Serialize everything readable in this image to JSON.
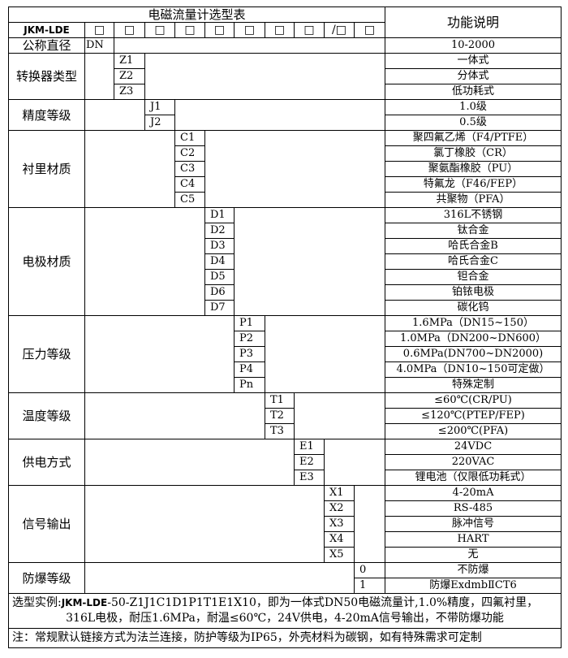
{
  "header": {
    "title": "电磁流量计选型表",
    "function_header": "功能说明",
    "model_prefix": "JKM-LDE",
    "code_boxes": [
      "□",
      "□",
      "□",
      "□",
      "□",
      "□",
      "□",
      "□",
      "/□",
      "□"
    ]
  },
  "nominal_diameter": {
    "label": "公称直径",
    "code": "DN",
    "description": "10-2000"
  },
  "sections": [
    {
      "label": "转换器类型",
      "column": 2,
      "rows": [
        {
          "code": "Z1",
          "description": "一体式"
        },
        {
          "code": "Z2",
          "description": "分体式"
        },
        {
          "code": "Z3",
          "description": "低功耗式"
        }
      ]
    },
    {
      "label": "精度等级",
      "column": 3,
      "rows": [
        {
          "code": "J1",
          "description": "1.0级"
        },
        {
          "code": "J2",
          "description": "0.5级"
        }
      ]
    },
    {
      "label": "衬里材质",
      "column": 4,
      "rows": [
        {
          "code": "C1",
          "description": "聚四氟乙烯（F4/PTFE）"
        },
        {
          "code": "C2",
          "description": "氯丁橡胶（CR）"
        },
        {
          "code": "C3",
          "description": "聚氨酯橡胶（PU）"
        },
        {
          "code": "C4",
          "description": "特氟龙（F46/FEP）"
        },
        {
          "code": "C5",
          "description": "共聚物（PFA）"
        }
      ]
    },
    {
      "label": "电极材质",
      "column": 5,
      "rows": [
        {
          "code": "D1",
          "description": "316L不锈钢"
        },
        {
          "code": "D2",
          "description": "钛合金"
        },
        {
          "code": "D3",
          "description": "哈氏合金B"
        },
        {
          "code": "D4",
          "description": "哈氏合金C"
        },
        {
          "code": "D5",
          "description": "钽合金"
        },
        {
          "code": "D6",
          "description": "铂铱电极"
        },
        {
          "code": "D7",
          "description": "碳化钨"
        }
      ]
    },
    {
      "label": "压力等级",
      "column": 6,
      "rows": [
        {
          "code": "P1",
          "description": "1.6MPa（DN15~150）"
        },
        {
          "code": "P2",
          "description": "1.0MPa（DN200~DN600）"
        },
        {
          "code": "P3",
          "description": "0.6MPa(DN700~DN2000)"
        },
        {
          "code": "P4",
          "description": "4.0MPa（DN10~150可定做）"
        },
        {
          "code": "Pn",
          "description": "特殊定制"
        }
      ]
    },
    {
      "label": "温度等级",
      "column": 7,
      "rows": [
        {
          "code": "T1",
          "description": "≤60℃(CR/PU)"
        },
        {
          "code": "T2",
          "description": "≤120℃(PTEP/FEP)"
        },
        {
          "code": "T3",
          "description": "≤200℃(PFA)"
        }
      ]
    },
    {
      "label": "供电方式",
      "column": 8,
      "rows": [
        {
          "code": "E1",
          "description": "24VDC"
        },
        {
          "code": "E2",
          "description": "220VAC"
        },
        {
          "code": "E3",
          "description": "锂电池（仅限低功耗式）"
        }
      ]
    },
    {
      "label": "信号输出",
      "column": 9,
      "rows": [
        {
          "code": "X1",
          "description": "4-20mA"
        },
        {
          "code": "X2",
          "description": "RS-485"
        },
        {
          "code": "X3",
          "description": "脉冲信号"
        },
        {
          "code": "X4",
          "description": "HART"
        },
        {
          "code": "X5",
          "description": "无"
        }
      ]
    },
    {
      "label": "防爆等级",
      "column": 10,
      "rows": [
        {
          "code": "0",
          "description": "不防爆"
        },
        {
          "code": "1",
          "description": "防爆ExdmbⅡCT6"
        }
      ]
    }
  ],
  "footer": {
    "example_label": "选型实例:",
    "example_model": "JKM-LDE",
    "example_line1": "-50-Z1J1C1D1P1T1E1X10，即为一体式DN50电磁流量计,1.0%精度，四氟衬里，",
    "example_line2": "316L电极，耐压1.6MPa，耐温≤60℃，24V供电，4-20mA信号输出，不带防爆功能",
    "note": "注：常规默认链接方式为法兰连接，防护等级为IP65，外壳材料为碳钢，如有特殊需求可定制"
  }
}
